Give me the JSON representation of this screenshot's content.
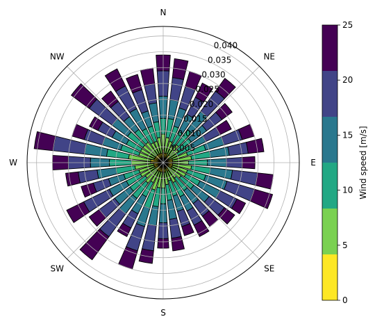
{
  "chart_data": {
    "type": "bar",
    "subtype": "stacked-polar-windrose",
    "title": "",
    "directions": [
      "N",
      "NE",
      "E",
      "SE",
      "S",
      "SW",
      "W",
      "NW"
    ],
    "radial_ticks": [
      "0.005",
      "0.010",
      "0.015",
      "0.020",
      "0.025",
      "0.030",
      "0.035",
      "0.040"
    ],
    "radial_range": [
      0,
      0.043
    ],
    "grid": true,
    "sector_count": 36,
    "colorbar": {
      "label": "Wind speed [m/s]",
      "ticks": [
        "0",
        "5",
        "10",
        "15",
        "20",
        "25"
      ],
      "placement": "right"
    },
    "bins": [
      {
        "range": "0-5",
        "color": "#fde725"
      },
      {
        "range": "5-10",
        "color": "#7ad151"
      },
      {
        "range": "10-15",
        "color": "#22a884"
      },
      {
        "range": "15-20",
        "color": "#2a788e"
      },
      {
        "range": "20-25",
        "color": "#414487"
      },
      {
        "range": "25+",
        "color": "#440154"
      }
    ],
    "sectors": [
      {
        "direction_deg": 0,
        "cumulative": [
          0.004,
          0.009,
          0.014,
          0.021,
          0.029,
          0.034
        ]
      },
      {
        "direction_deg": 10,
        "cumulative": [
          0.003,
          0.008,
          0.014,
          0.02,
          0.027,
          0.033
        ]
      },
      {
        "direction_deg": 20,
        "cumulative": [
          0.003,
          0.007,
          0.012,
          0.018,
          0.025,
          0.03
        ]
      },
      {
        "direction_deg": 30,
        "cumulative": [
          0.002,
          0.006,
          0.011,
          0.017,
          0.023,
          0.028
        ]
      },
      {
        "direction_deg": 40,
        "cumulative": [
          0.003,
          0.007,
          0.013,
          0.02,
          0.028,
          0.033
        ]
      },
      {
        "direction_deg": 50,
        "cumulative": [
          0.002,
          0.006,
          0.011,
          0.017,
          0.023,
          0.027
        ]
      },
      {
        "direction_deg": 60,
        "cumulative": [
          0.002,
          0.005,
          0.01,
          0.015,
          0.02,
          0.024
        ]
      },
      {
        "direction_deg": 70,
        "cumulative": [
          0.003,
          0.008,
          0.014,
          0.02,
          0.026,
          0.03
        ]
      },
      {
        "direction_deg": 80,
        "cumulative": [
          0.003,
          0.009,
          0.015,
          0.021,
          0.027,
          0.032
        ]
      },
      {
        "direction_deg": 90,
        "cumulative": [
          0.003,
          0.008,
          0.014,
          0.02,
          0.025,
          0.029
        ]
      },
      {
        "direction_deg": 100,
        "cumulative": [
          0.003,
          0.009,
          0.015,
          0.022,
          0.03,
          0.035
        ]
      },
      {
        "direction_deg": 110,
        "cumulative": [
          0.003,
          0.008,
          0.014,
          0.021,
          0.03,
          0.036
        ]
      },
      {
        "direction_deg": 120,
        "cumulative": [
          0.003,
          0.008,
          0.013,
          0.02,
          0.026,
          0.029
        ]
      },
      {
        "direction_deg": 130,
        "cumulative": [
          0.002,
          0.007,
          0.012,
          0.018,
          0.024,
          0.028
        ]
      },
      {
        "direction_deg": 140,
        "cumulative": [
          0.002,
          0.006,
          0.011,
          0.016,
          0.021,
          0.025
        ]
      },
      {
        "direction_deg": 150,
        "cumulative": [
          0.003,
          0.007,
          0.012,
          0.017,
          0.022,
          0.026
        ]
      },
      {
        "direction_deg": 160,
        "cumulative": [
          0.002,
          0.006,
          0.011,
          0.016,
          0.021,
          0.024
        ]
      },
      {
        "direction_deg": 170,
        "cumulative": [
          0.003,
          0.007,
          0.012,
          0.018,
          0.024,
          0.028
        ]
      },
      {
        "direction_deg": 180,
        "cumulative": [
          0.003,
          0.008,
          0.013,
          0.019,
          0.024,
          0.027
        ]
      },
      {
        "direction_deg": 190,
        "cumulative": [
          0.003,
          0.008,
          0.014,
          0.02,
          0.028,
          0.032
        ]
      },
      {
        "direction_deg": 200,
        "cumulative": [
          0.003,
          0.009,
          0.015,
          0.021,
          0.029,
          0.035
        ]
      },
      {
        "direction_deg": 210,
        "cumulative": [
          0.003,
          0.007,
          0.012,
          0.018,
          0.023,
          0.026
        ]
      },
      {
        "direction_deg": 220,
        "cumulative": [
          0.003,
          0.008,
          0.014,
          0.02,
          0.029,
          0.038
        ]
      },
      {
        "direction_deg": 230,
        "cumulative": [
          0.002,
          0.007,
          0.013,
          0.019,
          0.025,
          0.029
        ]
      },
      {
        "direction_deg": 240,
        "cumulative": [
          0.003,
          0.008,
          0.013,
          0.019,
          0.028,
          0.034
        ]
      },
      {
        "direction_deg": 250,
        "cumulative": [
          0.003,
          0.008,
          0.013,
          0.018,
          0.023,
          0.027
        ]
      },
      {
        "direction_deg": 260,
        "cumulative": [
          0.003,
          0.009,
          0.015,
          0.021,
          0.027,
          0.031
        ]
      },
      {
        "direction_deg": 270,
        "cumulative": [
          0.004,
          0.01,
          0.017,
          0.023,
          0.03,
          0.035
        ]
      },
      {
        "direction_deg": 280,
        "cumulative": [
          0.004,
          0.011,
          0.018,
          0.025,
          0.035,
          0.041
        ]
      },
      {
        "direction_deg": 290,
        "cumulative": [
          0.003,
          0.008,
          0.014,
          0.02,
          0.026,
          0.03
        ]
      },
      {
        "direction_deg": 300,
        "cumulative": [
          0.003,
          0.008,
          0.013,
          0.018,
          0.023,
          0.026
        ]
      },
      {
        "direction_deg": 310,
        "cumulative": [
          0.003,
          0.008,
          0.014,
          0.02,
          0.029,
          0.036
        ]
      },
      {
        "direction_deg": 320,
        "cumulative": [
          0.003,
          0.008,
          0.013,
          0.018,
          0.024,
          0.028
        ]
      },
      {
        "direction_deg": 330,
        "cumulative": [
          0.003,
          0.007,
          0.012,
          0.019,
          0.027,
          0.033
        ]
      },
      {
        "direction_deg": 340,
        "cumulative": [
          0.003,
          0.007,
          0.012,
          0.017,
          0.024,
          0.029
        ]
      },
      {
        "direction_deg": 350,
        "cumulative": [
          0.003,
          0.008,
          0.013,
          0.019,
          0.025,
          0.03
        ]
      }
    ]
  }
}
